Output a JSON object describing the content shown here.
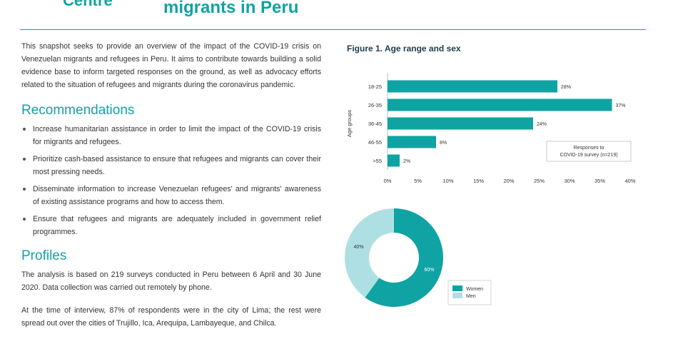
{
  "header": {
    "logo_text": "Centre",
    "title": "migrants in Peru"
  },
  "intro": "This snapshot seeks to provide an overview of the impact of the COVID-19 crisis on Venezuelan migrants and refugees in Peru. It aims to contribute towards building a solid evidence base to inform targeted responses on the ground, as well as advocacy efforts related to the situation of refugees and migrants during the coronavirus pandemic.",
  "recommendations": {
    "heading": "Recommendations",
    "items": [
      "Increase humanitarian assistance in order to limit the impact of the COVID-19 crisis for migrants and refugees.",
      "Prioritize cash-based assistance to ensure that refugees and migrants can cover their most pressing needs.",
      "Disseminate information to increase Venezuelan refugees' and migrants' awareness of existing assistance programs and how to access them.",
      "Ensure that refugees and migrants are adequately included in government relief programmes."
    ]
  },
  "profiles": {
    "heading": "Profiles",
    "paragraphs": [
      "The analysis is based on 219 surveys conducted in Peru between 6 April and 30 June 2020. Data collection was carried out remotely by phone.",
      "At the time of interview, 87% of respondents were in the city of Lima; the rest were spread out over the cities of Trujillo, Ica, Arequipa, Lambayeque, and Chilca."
    ]
  },
  "figure": {
    "title": "Figure 1. Age range and sex"
  },
  "chart_data": [
    {
      "type": "bar",
      "orientation": "horizontal",
      "title": "",
      "ylabel": "Age groups",
      "xlabel": "",
      "categories": [
        "18-25",
        "26-35",
        "36-45",
        "46-55",
        ">55"
      ],
      "values": [
        28,
        37,
        24,
        8,
        2
      ],
      "value_labels": [
        "28%",
        "37%",
        "24%",
        "8%",
        "2%"
      ],
      "xlim": [
        0,
        40
      ],
      "xticks": [
        "0%",
        "5%",
        "10%",
        "15%",
        "20%",
        "25%",
        "30%",
        "35%",
        "40%"
      ],
      "xtick_values": [
        0,
        5,
        10,
        15,
        20,
        25,
        30,
        35,
        40
      ],
      "annotation_lines": [
        "Responses to",
        "COVID-19 survey (n=219)"
      ],
      "color": "#0fa3a3"
    },
    {
      "type": "pie",
      "donut": true,
      "slices": [
        {
          "name": "Women",
          "value": 60,
          "label": "60%",
          "color": "#0fa3a3"
        },
        {
          "name": "Men",
          "value": 40,
          "label": "40%",
          "color": "#aee0e3"
        }
      ],
      "legend": "bottom-right"
    }
  ]
}
